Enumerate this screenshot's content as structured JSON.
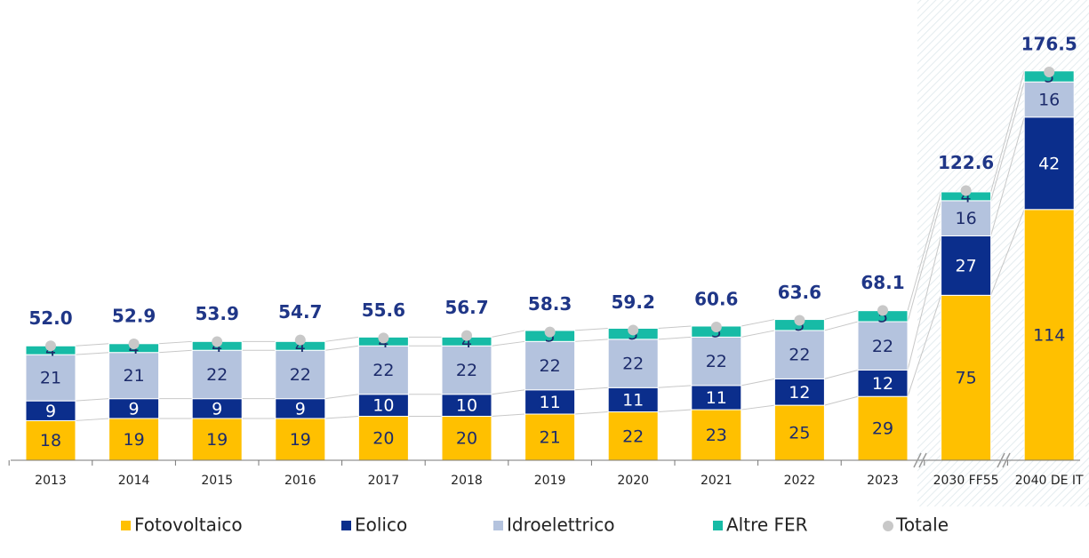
{
  "chart_data": {
    "type": "stacked_bar",
    "categories": [
      "2013",
      "2014",
      "2015",
      "2016",
      "2017",
      "2018",
      "2019",
      "2020",
      "2021",
      "2022",
      "2023",
      "2030 FF55",
      "2040 DE IT"
    ],
    "series": [
      {
        "name": "Fotovoltaico",
        "color": "#ffc000",
        "values": [
          18,
          19,
          19,
          19,
          20,
          20,
          21,
          22,
          23,
          25,
          29,
          75,
          114
        ]
      },
      {
        "name": "Eolico",
        "color": "#0b2e8c",
        "values": [
          9,
          9,
          9,
          9,
          10,
          10,
          11,
          11,
          11,
          12,
          12,
          27,
          42
        ]
      },
      {
        "name": "Idroelettrico",
        "color": "#b4c3de",
        "values": [
          21,
          21,
          22,
          22,
          22,
          22,
          22,
          22,
          22,
          22,
          22,
          16,
          16
        ]
      },
      {
        "name": "Altre FER",
        "color": "#17bba6",
        "values": [
          4,
          4,
          4,
          4,
          4,
          4,
          5,
          5,
          5,
          5,
          5,
          4,
          5
        ]
      },
      {
        "name": "Totale",
        "type": "dot",
        "color": "#c8c8c8",
        "values": [
          52.0,
          52.9,
          53.9,
          54.7,
          55.6,
          56.7,
          58.3,
          59.2,
          60.6,
          63.6,
          68.1,
          122.6,
          176.5
        ],
        "value_labels": [
          "52.0",
          "52.9",
          "53.9",
          "54.7",
          "55.6",
          "56.7",
          "58.3",
          "59.2",
          "60.6",
          "63.6",
          "68.1",
          "122.6",
          "176.5"
        ]
      }
    ],
    "ylim": [
      0,
      185
    ]
  }
}
